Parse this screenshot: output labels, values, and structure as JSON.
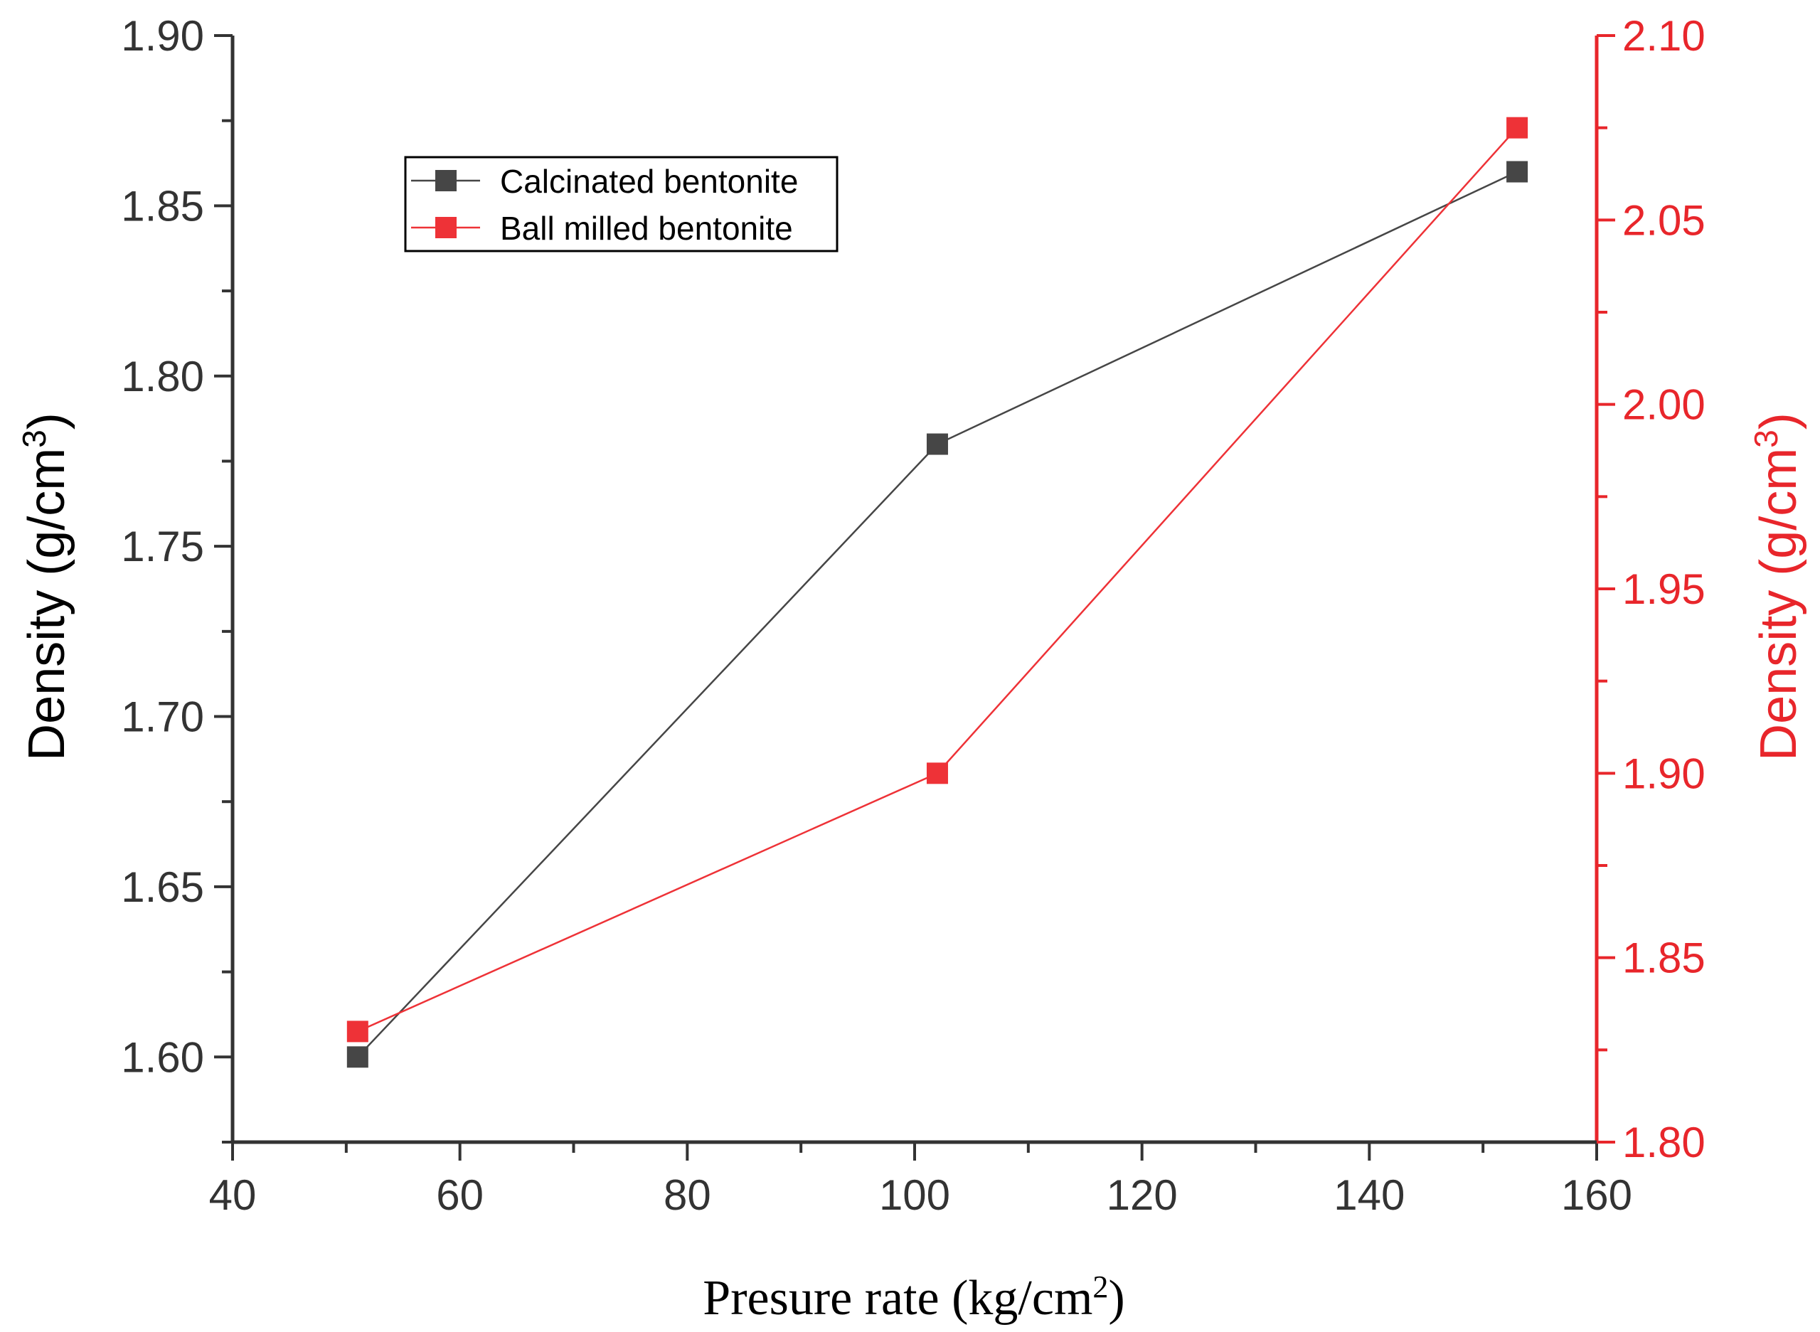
{
  "chart_data": {
    "type": "line",
    "x": [
      51,
      102,
      153
    ],
    "xlabel": {
      "main": "Presure rate (kg/cm",
      "sup": "2",
      "tail": ")"
    },
    "xlim": [
      40,
      160
    ],
    "xticks": [
      40,
      60,
      80,
      100,
      120,
      140,
      160
    ],
    "xtick_labels": [
      "40",
      "60",
      "80",
      "100",
      "120",
      "140",
      "160"
    ],
    "y_left": {
      "label": {
        "main": "Density (g/cm",
        "sup": "3",
        "tail": ")"
      },
      "lim": [
        1.575,
        1.9
      ],
      "ticks": [
        1.6,
        1.65,
        1.7,
        1.75,
        1.8,
        1.85,
        1.9
      ],
      "tick_labels": [
        "1.60",
        "1.65",
        "1.70",
        "1.75",
        "1.80",
        "1.85",
        "1.90"
      ],
      "color": "#333333"
    },
    "y_right": {
      "label": {
        "main": "Density (g/cm",
        "sup": "3",
        "tail": ")"
      },
      "lim": [
        1.8,
        2.1
      ],
      "ticks": [
        1.8,
        1.85,
        1.9,
        1.95,
        2.0,
        2.05,
        2.1
      ],
      "tick_labels": [
        "1.80",
        "1.85",
        "1.90",
        "1.95",
        "2.00",
        "2.05",
        "2.10"
      ],
      "color": "#e8262b"
    },
    "series": [
      {
        "name": "Calcinated bentonite",
        "axis": "left",
        "color": "#464646",
        "values": [
          1.6,
          1.78,
          1.86
        ]
      },
      {
        "name": "Ball milled bentonite",
        "axis": "right",
        "color": "#ee3237",
        "values": [
          1.83,
          1.9,
          2.075
        ]
      }
    ],
    "legend": {
      "position": "top-left",
      "frame": true
    },
    "grid": false
  }
}
